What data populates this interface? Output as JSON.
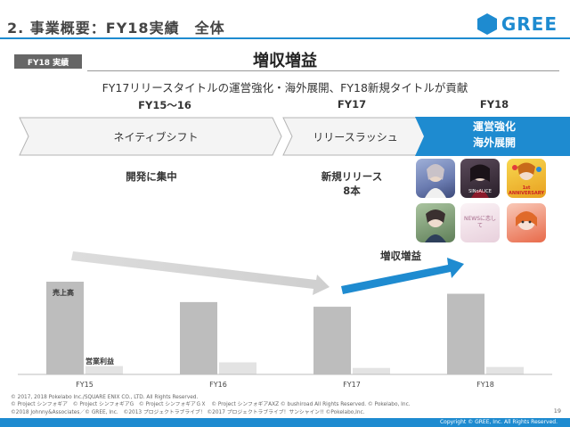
{
  "header": {
    "title": "2. 事業概要：FY18実績　全体",
    "logo_text": "GREE",
    "brand_color": "#1e8bd0"
  },
  "badge": "FY18 実績",
  "headline": "増収増益",
  "subheadline": "FY17リリースタイトルの運営強化・海外展開、FY18新規タイトルが貢献",
  "periods": [
    "FY15〜16",
    "FY17",
    "FY18"
  ],
  "phases": [
    "ネイティブシフト",
    "リリースラッシュ",
    "運営強化",
    "海外展開"
  ],
  "notes": {
    "development": "開発に集中",
    "new_releases": "新規リリース",
    "new_release_count": "8本",
    "growth": "増収増益"
  },
  "game_icons": [
    {
      "name": "game-icon-1",
      "color": "#6a7bb0"
    },
    {
      "name": "game-icon-sinoalice",
      "color": "#3a2a3a",
      "text": "SINoALICE"
    },
    {
      "name": "game-icon-anniversary",
      "color": "#e8b020",
      "text": "1st ANNIVERSARY"
    },
    {
      "name": "game-icon-4",
      "color": "#7a9a6a"
    },
    {
      "name": "game-icon-news",
      "color": "#f3e6ec",
      "text": "NEWSに恋して"
    },
    {
      "name": "game-icon-6",
      "color": "#e86a4a"
    }
  ],
  "chart_data": {
    "type": "bar",
    "categories": [
      "FY15",
      "FY16",
      "FY17",
      "FY18"
    ],
    "series": [
      {
        "name": "売上高",
        "values": [
          100,
          78,
          73,
          87
        ],
        "color": "#bdbdbd"
      },
      {
        "name": "営業利益",
        "values": [
          9,
          13,
          7,
          8
        ],
        "color": "#e3e3e3"
      }
    ]
  },
  "footer": {
    "copyright_lines": [
      "© 2017, 2018 Pokelabo Inc./SQUARE ENIX CO., LTD. All Rights Reserved.",
      "© Project シンフォギア　© Project シンフォギアG　© Project シンフォギアＧＸ　© Project シンフォギアAXZ © bushiroad All Rights Reserved. © Pokelabo, Inc.",
      "©2018 Johnny&Associates／© GREE, Inc.　©2013 プロジェクトラブライブ！ ©2017 プロジェクトラブライブ！サンシャイン!! ©Pokelabo,Inc."
    ],
    "page_number": "19",
    "bar_text": "Copyright © GREE, Inc. All Rights Reserved."
  }
}
